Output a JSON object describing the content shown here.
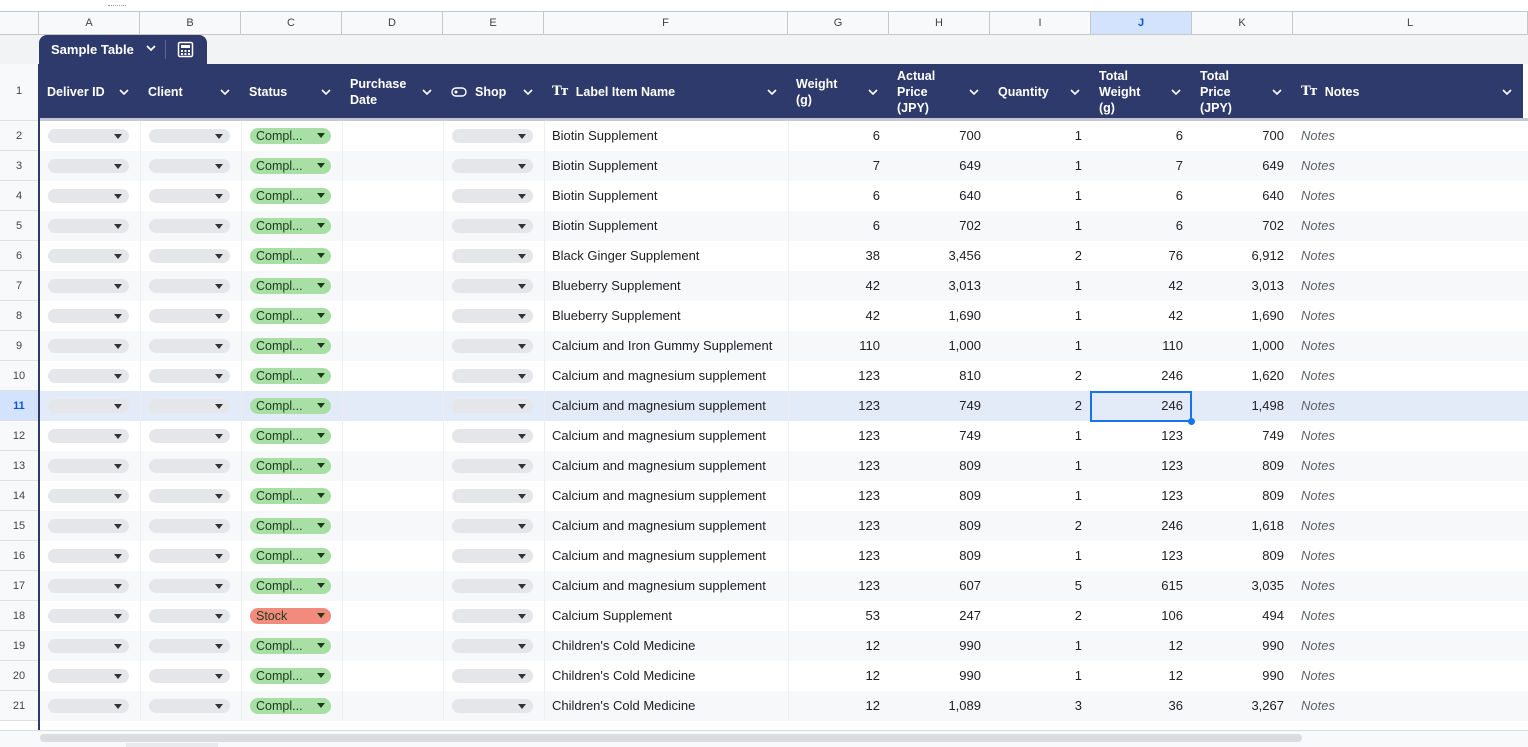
{
  "sheet": {
    "table_name": "Sample Table",
    "selected_column": "J",
    "selected_row": "11",
    "column_letters": [
      "A",
      "B",
      "C",
      "D",
      "E",
      "F",
      "G",
      "H",
      "I",
      "J",
      "K",
      "L"
    ]
  },
  "headers": [
    {
      "key": "A",
      "lines": [
        "Deliver ID"
      ],
      "type_icon": ""
    },
    {
      "key": "B",
      "lines": [
        "Client"
      ],
      "type_icon": ""
    },
    {
      "key": "C",
      "lines": [
        "Status"
      ],
      "type_icon": ""
    },
    {
      "key": "D",
      "lines": [
        "Purchase",
        "Date"
      ],
      "type_icon": ""
    },
    {
      "key": "E",
      "lines": [
        "Shop"
      ],
      "type_icon": "chip-icon"
    },
    {
      "key": "F",
      "lines": [
        "Label Item Name"
      ],
      "type_icon": "text-type-icon"
    },
    {
      "key": "G",
      "lines": [
        "Weight",
        "(g)"
      ],
      "type_icon": ""
    },
    {
      "key": "H",
      "lines": [
        "Actual",
        "Price",
        "(JPY)"
      ],
      "type_icon": ""
    },
    {
      "key": "I",
      "lines": [
        "Quantity"
      ],
      "type_icon": ""
    },
    {
      "key": "J",
      "lines": [
        "Total",
        "Weight",
        "(g)"
      ],
      "type_icon": ""
    },
    {
      "key": "K",
      "lines": [
        "Total",
        "Price",
        "(JPY)"
      ],
      "type_icon": ""
    },
    {
      "key": "L",
      "lines": [
        "Notes"
      ],
      "type_icon": "text-type-icon"
    }
  ],
  "status_colors": {
    "Compl...": "#a8dfa5",
    "Stock": "#f28b7d"
  },
  "rows": [
    {
      "n": "2",
      "status": "Compl...",
      "item": "Biotin Supplement",
      "weight": "6",
      "price": "700",
      "qty": "1",
      "tw": "6",
      "tp": "700",
      "notes": "Notes"
    },
    {
      "n": "3",
      "status": "Compl...",
      "item": "Biotin Supplement",
      "weight": "7",
      "price": "649",
      "qty": "1",
      "tw": "7",
      "tp": "649",
      "notes": "Notes"
    },
    {
      "n": "4",
      "status": "Compl...",
      "item": "Biotin Supplement",
      "weight": "6",
      "price": "640",
      "qty": "1",
      "tw": "6",
      "tp": "640",
      "notes": "Notes"
    },
    {
      "n": "5",
      "status": "Compl...",
      "item": "Biotin Supplement",
      "weight": "6",
      "price": "702",
      "qty": "1",
      "tw": "6",
      "tp": "702",
      "notes": "Notes"
    },
    {
      "n": "6",
      "status": "Compl...",
      "item": "Black Ginger Supplement",
      "weight": "38",
      "price": "3,456",
      "qty": "2",
      "tw": "76",
      "tp": "6,912",
      "notes": "Notes"
    },
    {
      "n": "7",
      "status": "Compl...",
      "item": "Blueberry Supplement",
      "weight": "42",
      "price": "3,013",
      "qty": "1",
      "tw": "42",
      "tp": "3,013",
      "notes": "Notes"
    },
    {
      "n": "8",
      "status": "Compl...",
      "item": "Blueberry Supplement",
      "weight": "42",
      "price": "1,690",
      "qty": "1",
      "tw": "42",
      "tp": "1,690",
      "notes": "Notes"
    },
    {
      "n": "9",
      "status": "Compl...",
      "item": "Calcium and Iron Gummy Supplement",
      "weight": "110",
      "price": "1,000",
      "qty": "1",
      "tw": "110",
      "tp": "1,000",
      "notes": "Notes"
    },
    {
      "n": "10",
      "status": "Compl...",
      "item": "Calcium and magnesium supplement",
      "weight": "123",
      "price": "810",
      "qty": "2",
      "tw": "246",
      "tp": "1,620",
      "notes": "Notes"
    },
    {
      "n": "11",
      "status": "Compl...",
      "item": "Calcium and magnesium supplement",
      "weight": "123",
      "price": "749",
      "qty": "2",
      "tw": "246",
      "tp": "1,498",
      "notes": "Notes"
    },
    {
      "n": "12",
      "status": "Compl...",
      "item": "Calcium and magnesium supplement",
      "weight": "123",
      "price": "749",
      "qty": "1",
      "tw": "123",
      "tp": "749",
      "notes": "Notes"
    },
    {
      "n": "13",
      "status": "Compl...",
      "item": "Calcium and magnesium supplement",
      "weight": "123",
      "price": "809",
      "qty": "1",
      "tw": "123",
      "tp": "809",
      "notes": "Notes"
    },
    {
      "n": "14",
      "status": "Compl...",
      "item": "Calcium and magnesium supplement",
      "weight": "123",
      "price": "809",
      "qty": "1",
      "tw": "123",
      "tp": "809",
      "notes": "Notes"
    },
    {
      "n": "15",
      "status": "Compl...",
      "item": "Calcium and magnesium supplement",
      "weight": "123",
      "price": "809",
      "qty": "2",
      "tw": "246",
      "tp": "1,618",
      "notes": "Notes"
    },
    {
      "n": "16",
      "status": "Compl...",
      "item": "Calcium and magnesium supplement",
      "weight": "123",
      "price": "809",
      "qty": "1",
      "tw": "123",
      "tp": "809",
      "notes": "Notes"
    },
    {
      "n": "17",
      "status": "Compl...",
      "item": "Calcium and magnesium supplement",
      "weight": "123",
      "price": "607",
      "qty": "5",
      "tw": "615",
      "tp": "3,035",
      "notes": "Notes"
    },
    {
      "n": "18",
      "status": "Stock",
      "item": "Calcium Supplement",
      "weight": "53",
      "price": "247",
      "qty": "2",
      "tw": "106",
      "tp": "494",
      "notes": "Notes"
    },
    {
      "n": "19",
      "status": "Compl...",
      "item": "Children's Cold Medicine",
      "weight": "12",
      "price": "990",
      "qty": "1",
      "tw": "12",
      "tp": "990",
      "notes": "Notes"
    },
    {
      "n": "20",
      "status": "Compl...",
      "item": "Children's Cold Medicine",
      "weight": "12",
      "price": "990",
      "qty": "1",
      "tw": "12",
      "tp": "990",
      "notes": "Notes"
    },
    {
      "n": "21",
      "status": "Compl...",
      "item": "Children's Cold Medicine",
      "weight": "12",
      "price": "1,089",
      "qty": "3",
      "tw": "36",
      "tp": "3,267",
      "notes": "Notes"
    }
  ]
}
